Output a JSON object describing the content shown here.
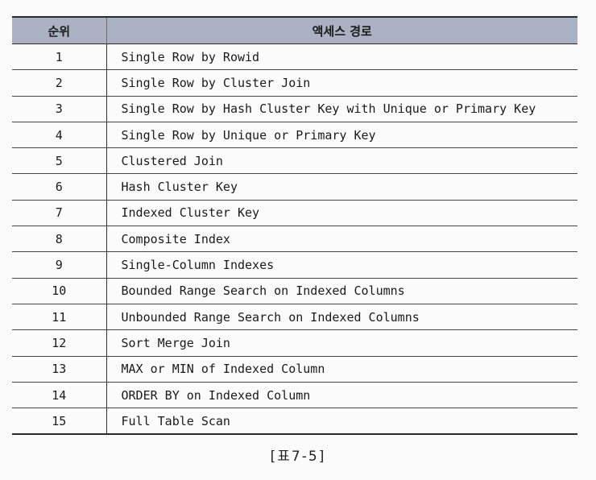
{
  "table": {
    "header": {
      "rank": "순위",
      "access_path": "액세스 경로"
    },
    "rows": [
      {
        "rank": "1",
        "path": "Single Row by Rowid"
      },
      {
        "rank": "2",
        "path": "Single Row by Cluster Join"
      },
      {
        "rank": "3",
        "path": "Single Row by Hash Cluster Key with Unique or Primary Key"
      },
      {
        "rank": "4",
        "path": "Single Row by Unique or Primary Key"
      },
      {
        "rank": "5",
        "path": "Clustered Join"
      },
      {
        "rank": "6",
        "path": "Hash Cluster Key"
      },
      {
        "rank": "7",
        "path": "Indexed Cluster Key"
      },
      {
        "rank": "8",
        "path": "Composite Index"
      },
      {
        "rank": "9",
        "path": "Single-Column Indexes"
      },
      {
        "rank": "10",
        "path": "Bounded Range Search on Indexed Columns"
      },
      {
        "rank": "11",
        "path": "Unbounded Range Search on Indexed Columns"
      },
      {
        "rank": "12",
        "path": "Sort Merge Join"
      },
      {
        "rank": "13",
        "path": "MAX or MIN of Indexed Column"
      },
      {
        "rank": "14",
        "path": "ORDER BY on Indexed Column"
      },
      {
        "rank": "15",
        "path": "Full Table Scan"
      }
    ]
  },
  "caption": "[표7-5]"
}
